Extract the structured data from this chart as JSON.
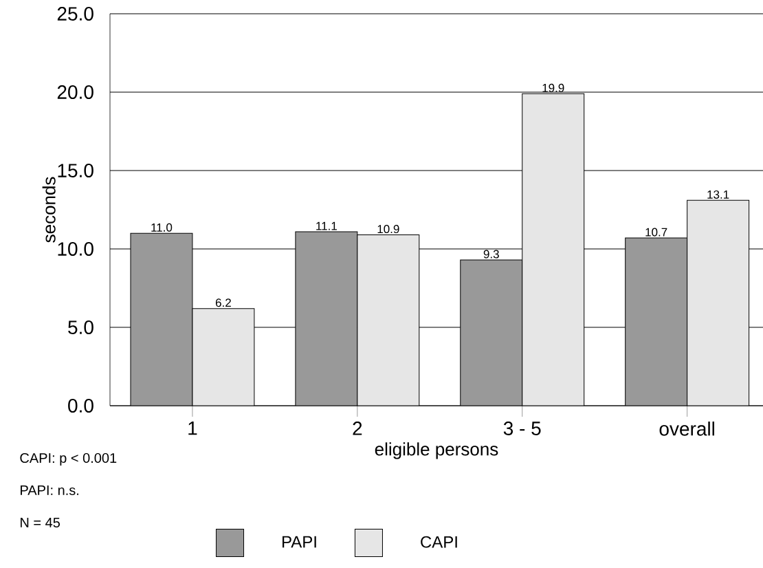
{
  "chart_data": {
    "type": "bar",
    "xlabel": "eligible persons",
    "ylabel": "seconds",
    "categories": [
      "1",
      "2",
      "3 - 5",
      "overall"
    ],
    "series": [
      {
        "name": "PAPI",
        "color": "#999999",
        "values": [
          11.0,
          11.1,
          9.3,
          10.7
        ],
        "value_labels": [
          "11.0",
          "11.1",
          "9.3",
          "10.7"
        ]
      },
      {
        "name": "CAPI",
        "color": "#e6e6e6",
        "values": [
          6.2,
          10.9,
          19.9,
          13.1
        ],
        "value_labels": [
          "6.2",
          "10.9",
          "19.9",
          "13.1"
        ]
      }
    ],
    "ylim": [
      0,
      25
    ],
    "yticks": [
      {
        "value": 0,
        "label": "0.0"
      },
      {
        "value": 5,
        "label": "5.0"
      },
      {
        "value": 10,
        "label": "10.0"
      },
      {
        "value": 15,
        "label": "15.0"
      },
      {
        "value": 20,
        "label": "20.0"
      },
      {
        "value": 25,
        "label": "25.0"
      }
    ],
    "grid": "y",
    "legend": "bottom",
    "annotations": [
      "CAPI: p < 0.001",
      "PAPI: n.s.",
      "N = 45"
    ]
  }
}
